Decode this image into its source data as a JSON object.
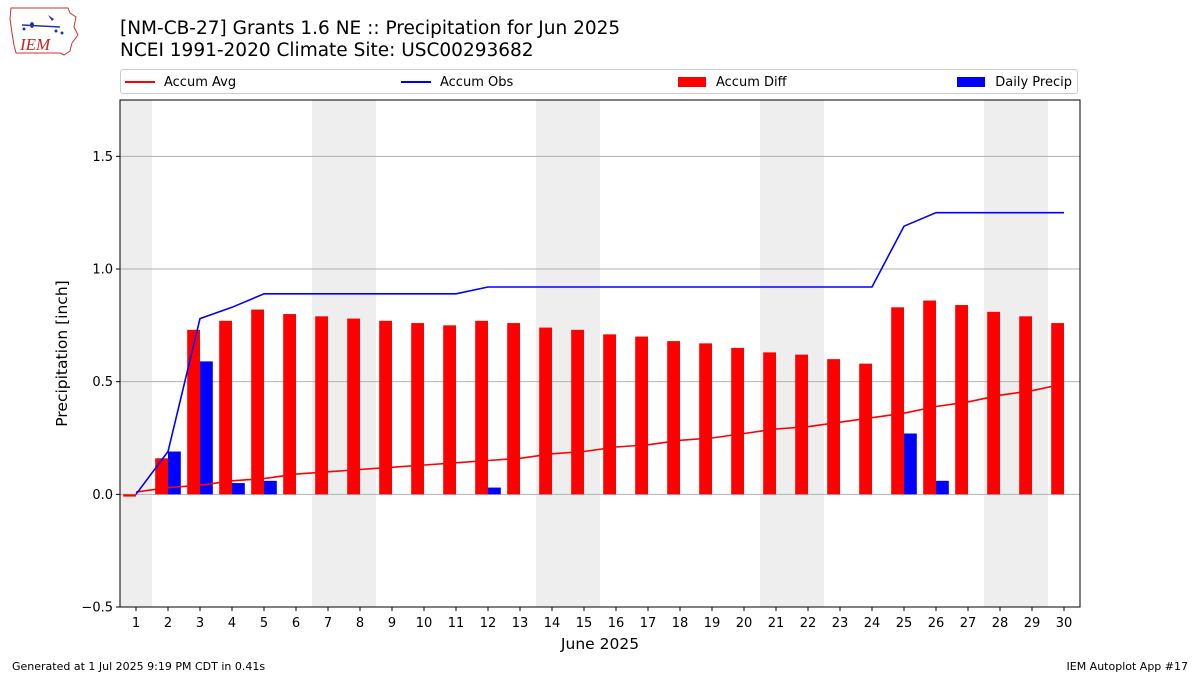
{
  "header": {
    "title_line1": "[NM-CB-27] Grants 1.6 NE :: Precipitation for Jun 2025",
    "title_line2": "NCEI 1991-2020 Climate Site: USC00293682"
  },
  "logo": {
    "text": "IEM"
  },
  "legend": {
    "placement": "top",
    "items": [
      {
        "label": "Accum Avg",
        "kind": "line",
        "color": "#ff0000"
      },
      {
        "label": "Accum Obs",
        "kind": "line",
        "color": "#0000ff"
      },
      {
        "label": "Accum Diff",
        "kind": "bar",
        "color": "#ff0000"
      },
      {
        "label": "Daily Precip",
        "kind": "bar",
        "color": "#0000ff"
      }
    ]
  },
  "footer": {
    "generated": "Generated at 1 Jul 2025 9:19 PM CDT in 0.41s",
    "app": "IEM Autoplot App #17"
  },
  "chart_data": {
    "type": "bar",
    "title": "[NM-CB-27] Grants 1.6 NE :: Precipitation for Jun 2025",
    "subtitle": "NCEI 1991-2020 Climate Site: USC00293682",
    "xlabel": "June 2025",
    "ylabel": "Precipitation [inch]",
    "ylim": [
      -0.5,
      1.75
    ],
    "yticks": [
      -0.5,
      0.0,
      0.5,
      1.0,
      1.5
    ],
    "ytick_labels": [
      "−0.5",
      "0.0",
      "0.5",
      "1.0",
      "1.5"
    ],
    "grid": "horizontal",
    "weekend_shading_days": [
      1,
      7,
      8,
      14,
      15,
      21,
      22,
      28,
      29
    ],
    "x": [
      1,
      2,
      3,
      4,
      5,
      6,
      7,
      8,
      9,
      10,
      11,
      12,
      13,
      14,
      15,
      16,
      17,
      18,
      19,
      20,
      21,
      22,
      23,
      24,
      25,
      26,
      27,
      28,
      29,
      30
    ],
    "series": [
      {
        "name": "Accum Avg",
        "kind": "line",
        "color": "#ff0000",
        "values": [
          0.01,
          0.03,
          0.04,
          0.06,
          0.07,
          0.09,
          0.1,
          0.11,
          0.12,
          0.13,
          0.14,
          0.15,
          0.16,
          0.18,
          0.19,
          0.21,
          0.22,
          0.24,
          0.25,
          0.27,
          0.29,
          0.3,
          0.32,
          0.34,
          0.36,
          0.39,
          0.41,
          0.44,
          0.46,
          0.49
        ]
      },
      {
        "name": "Accum Obs",
        "kind": "line",
        "color": "#0000ff",
        "values": [
          0.0,
          0.19,
          0.78,
          0.83,
          0.89,
          0.89,
          0.89,
          0.89,
          0.89,
          0.89,
          0.89,
          0.92,
          0.92,
          0.92,
          0.92,
          0.92,
          0.92,
          0.92,
          0.92,
          0.92,
          0.92,
          0.92,
          0.92,
          0.92,
          1.19,
          1.25,
          1.25,
          1.25,
          1.25,
          1.25
        ]
      },
      {
        "name": "Accum Diff",
        "kind": "bar",
        "color": "#ff0000",
        "values": [
          -0.01,
          0.16,
          0.73,
          0.77,
          0.82,
          0.8,
          0.79,
          0.78,
          0.77,
          0.76,
          0.75,
          0.77,
          0.76,
          0.74,
          0.73,
          0.71,
          0.7,
          0.68,
          0.67,
          0.65,
          0.63,
          0.62,
          0.6,
          0.58,
          0.83,
          0.86,
          0.84,
          0.81,
          0.79,
          0.76
        ]
      },
      {
        "name": "Daily Precip",
        "kind": "bar",
        "color": "#0000ff",
        "values": [
          0.0,
          0.19,
          0.59,
          0.05,
          0.06,
          0.0,
          0.0,
          0.0,
          0.0,
          0.0,
          0.0,
          0.03,
          0.0,
          0.0,
          0.0,
          0.0,
          0.0,
          0.0,
          0.0,
          0.0,
          0.0,
          0.0,
          0.0,
          0.0,
          0.27,
          0.06,
          0.0,
          0.0,
          0.0,
          0.0
        ]
      }
    ]
  }
}
